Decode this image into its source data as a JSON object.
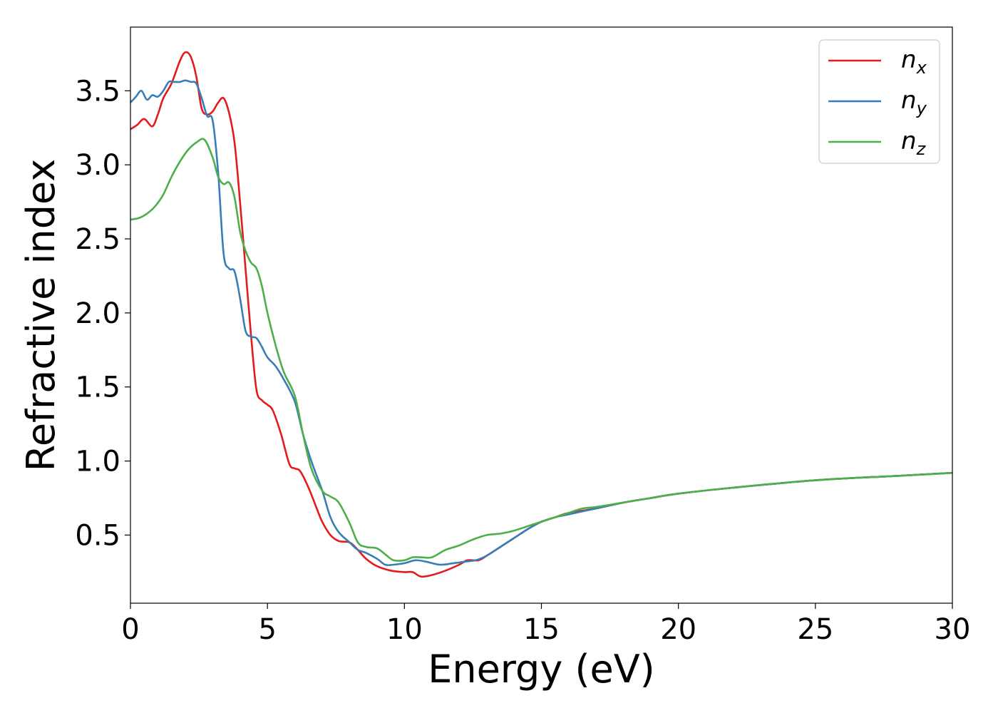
{
  "chart_data": {
    "type": "line",
    "xlabel": "Energy (eV)",
    "ylabel": "Refractive index",
    "xlim": [
      0,
      30
    ],
    "ylim": [
      0.04,
      3.93
    ],
    "xticks": [
      0,
      5,
      10,
      15,
      20,
      25,
      30
    ],
    "xtick_labels": [
      "0",
      "5",
      "10",
      "15",
      "20",
      "25",
      "30"
    ],
    "yticks": [
      0.5,
      1.0,
      1.5,
      2.0,
      2.5,
      3.0,
      3.5
    ],
    "ytick_labels": [
      "0.5",
      "1.0",
      "1.5",
      "2.0",
      "2.5",
      "3.0",
      "3.5"
    ],
    "grid": false,
    "legend_position": "top-right",
    "series": [
      {
        "name": "n_x",
        "label_main": "n",
        "label_sub": "x",
        "color": "#e41a1c",
        "x": [
          0,
          0.25,
          0.5,
          0.8,
          1.0,
          1.2,
          1.5,
          1.8,
          2.0,
          2.2,
          2.4,
          2.6,
          2.8,
          3.0,
          3.2,
          3.4,
          3.6,
          3.8,
          4.0,
          4.2,
          4.4,
          4.6,
          4.8,
          5.0,
          5.2,
          5.5,
          5.8,
          6.0,
          6.2,
          6.5,
          6.8,
          7.0,
          7.3,
          7.6,
          8.0,
          8.3,
          8.6,
          9.0,
          9.5,
          10.0,
          10.3,
          10.6,
          11.0,
          11.5,
          12.0,
          12.3,
          12.7,
          13.0,
          13.5,
          14.0,
          14.5,
          15.0,
          15.5,
          16.0,
          17.0,
          18.0,
          19.0,
          20.0,
          22.0,
          25.0,
          28.0,
          30.0
        ],
        "y": [
          3.24,
          3.27,
          3.31,
          3.26,
          3.34,
          3.45,
          3.55,
          3.7,
          3.76,
          3.73,
          3.6,
          3.38,
          3.34,
          3.36,
          3.42,
          3.45,
          3.35,
          3.15,
          2.75,
          2.3,
          1.85,
          1.48,
          1.41,
          1.38,
          1.34,
          1.18,
          0.98,
          0.95,
          0.93,
          0.82,
          0.68,
          0.59,
          0.5,
          0.46,
          0.45,
          0.4,
          0.34,
          0.29,
          0.26,
          0.25,
          0.25,
          0.22,
          0.23,
          0.26,
          0.3,
          0.33,
          0.33,
          0.36,
          0.42,
          0.48,
          0.54,
          0.59,
          0.62,
          0.65,
          0.68,
          0.72,
          0.75,
          0.78,
          0.82,
          0.87,
          0.9,
          0.92
        ]
      },
      {
        "name": "n_y",
        "label_main": "n",
        "label_sub": "y",
        "color": "#377eb8",
        "x": [
          0,
          0.2,
          0.4,
          0.6,
          0.8,
          1.0,
          1.2,
          1.4,
          1.6,
          1.8,
          2.0,
          2.2,
          2.4,
          2.6,
          2.8,
          3.0,
          3.2,
          3.4,
          3.6,
          3.8,
          4.0,
          4.2,
          4.4,
          4.6,
          4.8,
          5.0,
          5.3,
          5.6,
          6.0,
          6.3,
          6.6,
          7.0,
          7.3,
          7.6,
          8.0,
          8.3,
          8.6,
          9.0,
          9.3,
          9.6,
          10.0,
          10.4,
          10.8,
          11.3,
          11.8,
          12.2,
          12.6,
          13.0,
          13.5,
          14.0,
          14.5,
          15.0,
          15.5,
          16.0,
          17.0,
          18.0,
          19.0,
          20.0,
          22.0,
          25.0,
          28.0,
          30.0
        ],
        "y": [
          3.42,
          3.46,
          3.5,
          3.44,
          3.47,
          3.46,
          3.5,
          3.56,
          3.56,
          3.56,
          3.57,
          3.56,
          3.55,
          3.45,
          3.33,
          3.3,
          2.95,
          2.4,
          2.3,
          2.28,
          2.1,
          1.88,
          1.84,
          1.83,
          1.77,
          1.7,
          1.64,
          1.55,
          1.4,
          1.18,
          1.0,
          0.8,
          0.62,
          0.52,
          0.45,
          0.4,
          0.38,
          0.34,
          0.3,
          0.3,
          0.31,
          0.33,
          0.32,
          0.3,
          0.31,
          0.32,
          0.33,
          0.36,
          0.42,
          0.48,
          0.54,
          0.59,
          0.62,
          0.64,
          0.68,
          0.72,
          0.75,
          0.78,
          0.82,
          0.87,
          0.9,
          0.92
        ]
      },
      {
        "name": "n_z",
        "label_main": "n",
        "label_sub": "z",
        "color": "#4daf4a",
        "x": [
          0,
          0.3,
          0.6,
          0.9,
          1.2,
          1.5,
          1.8,
          2.1,
          2.4,
          2.7,
          3.0,
          3.2,
          3.4,
          3.6,
          3.8,
          4.0,
          4.2,
          4.4,
          4.6,
          4.8,
          5.0,
          5.3,
          5.6,
          6.0,
          6.3,
          6.6,
          7.0,
          7.3,
          7.6,
          8.0,
          8.3,
          8.6,
          9.0,
          9.3,
          9.6,
          10.0,
          10.3,
          10.6,
          11.0,
          11.5,
          12.0,
          12.5,
          13.0,
          13.5,
          14.0,
          14.5,
          15.0,
          15.5,
          16.0,
          16.5,
          17.0,
          18.0,
          19.0,
          20.0,
          22.0,
          25.0,
          28.0,
          30.0
        ],
        "y": [
          2.63,
          2.64,
          2.67,
          2.72,
          2.8,
          2.92,
          3.02,
          3.1,
          3.15,
          3.17,
          3.05,
          2.92,
          2.87,
          2.88,
          2.78,
          2.55,
          2.42,
          2.34,
          2.3,
          2.18,
          2.0,
          1.78,
          1.6,
          1.44,
          1.18,
          0.95,
          0.8,
          0.76,
          0.72,
          0.58,
          0.45,
          0.42,
          0.41,
          0.37,
          0.33,
          0.33,
          0.35,
          0.35,
          0.35,
          0.4,
          0.43,
          0.47,
          0.5,
          0.51,
          0.53,
          0.56,
          0.59,
          0.62,
          0.65,
          0.68,
          0.69,
          0.72,
          0.75,
          0.78,
          0.82,
          0.87,
          0.9,
          0.92
        ]
      }
    ]
  }
}
